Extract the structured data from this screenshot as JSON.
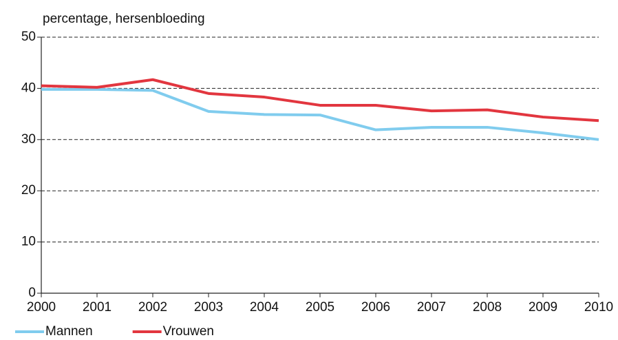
{
  "chart_data": {
    "type": "line",
    "title": "percentage, hersenbloeding",
    "x": [
      2000,
      2001,
      2002,
      2003,
      2004,
      2005,
      2006,
      2007,
      2008,
      2009,
      2010
    ],
    "xlim": [
      2000,
      2010
    ],
    "xticks": [
      2000,
      2001,
      2002,
      2003,
      2004,
      2005,
      2006,
      2007,
      2008,
      2009,
      2010
    ],
    "ylim": [
      0,
      50
    ],
    "yticks": [
      0,
      10,
      20,
      30,
      40,
      50
    ],
    "grid": true,
    "legend": "bottom-left",
    "series": [
      {
        "name": "Mannen",
        "color": "#80ccee",
        "values": [
          39.8,
          39.8,
          39.6,
          35.5,
          34.9,
          34.8,
          31.9,
          32.4,
          32.4,
          31.3,
          30.0
        ]
      },
      {
        "name": "Vrouwen",
        "color": "#e2363f",
        "values": [
          40.5,
          40.2,
          41.7,
          39.0,
          38.3,
          36.7,
          36.7,
          35.6,
          35.8,
          34.4,
          33.7
        ]
      }
    ]
  }
}
